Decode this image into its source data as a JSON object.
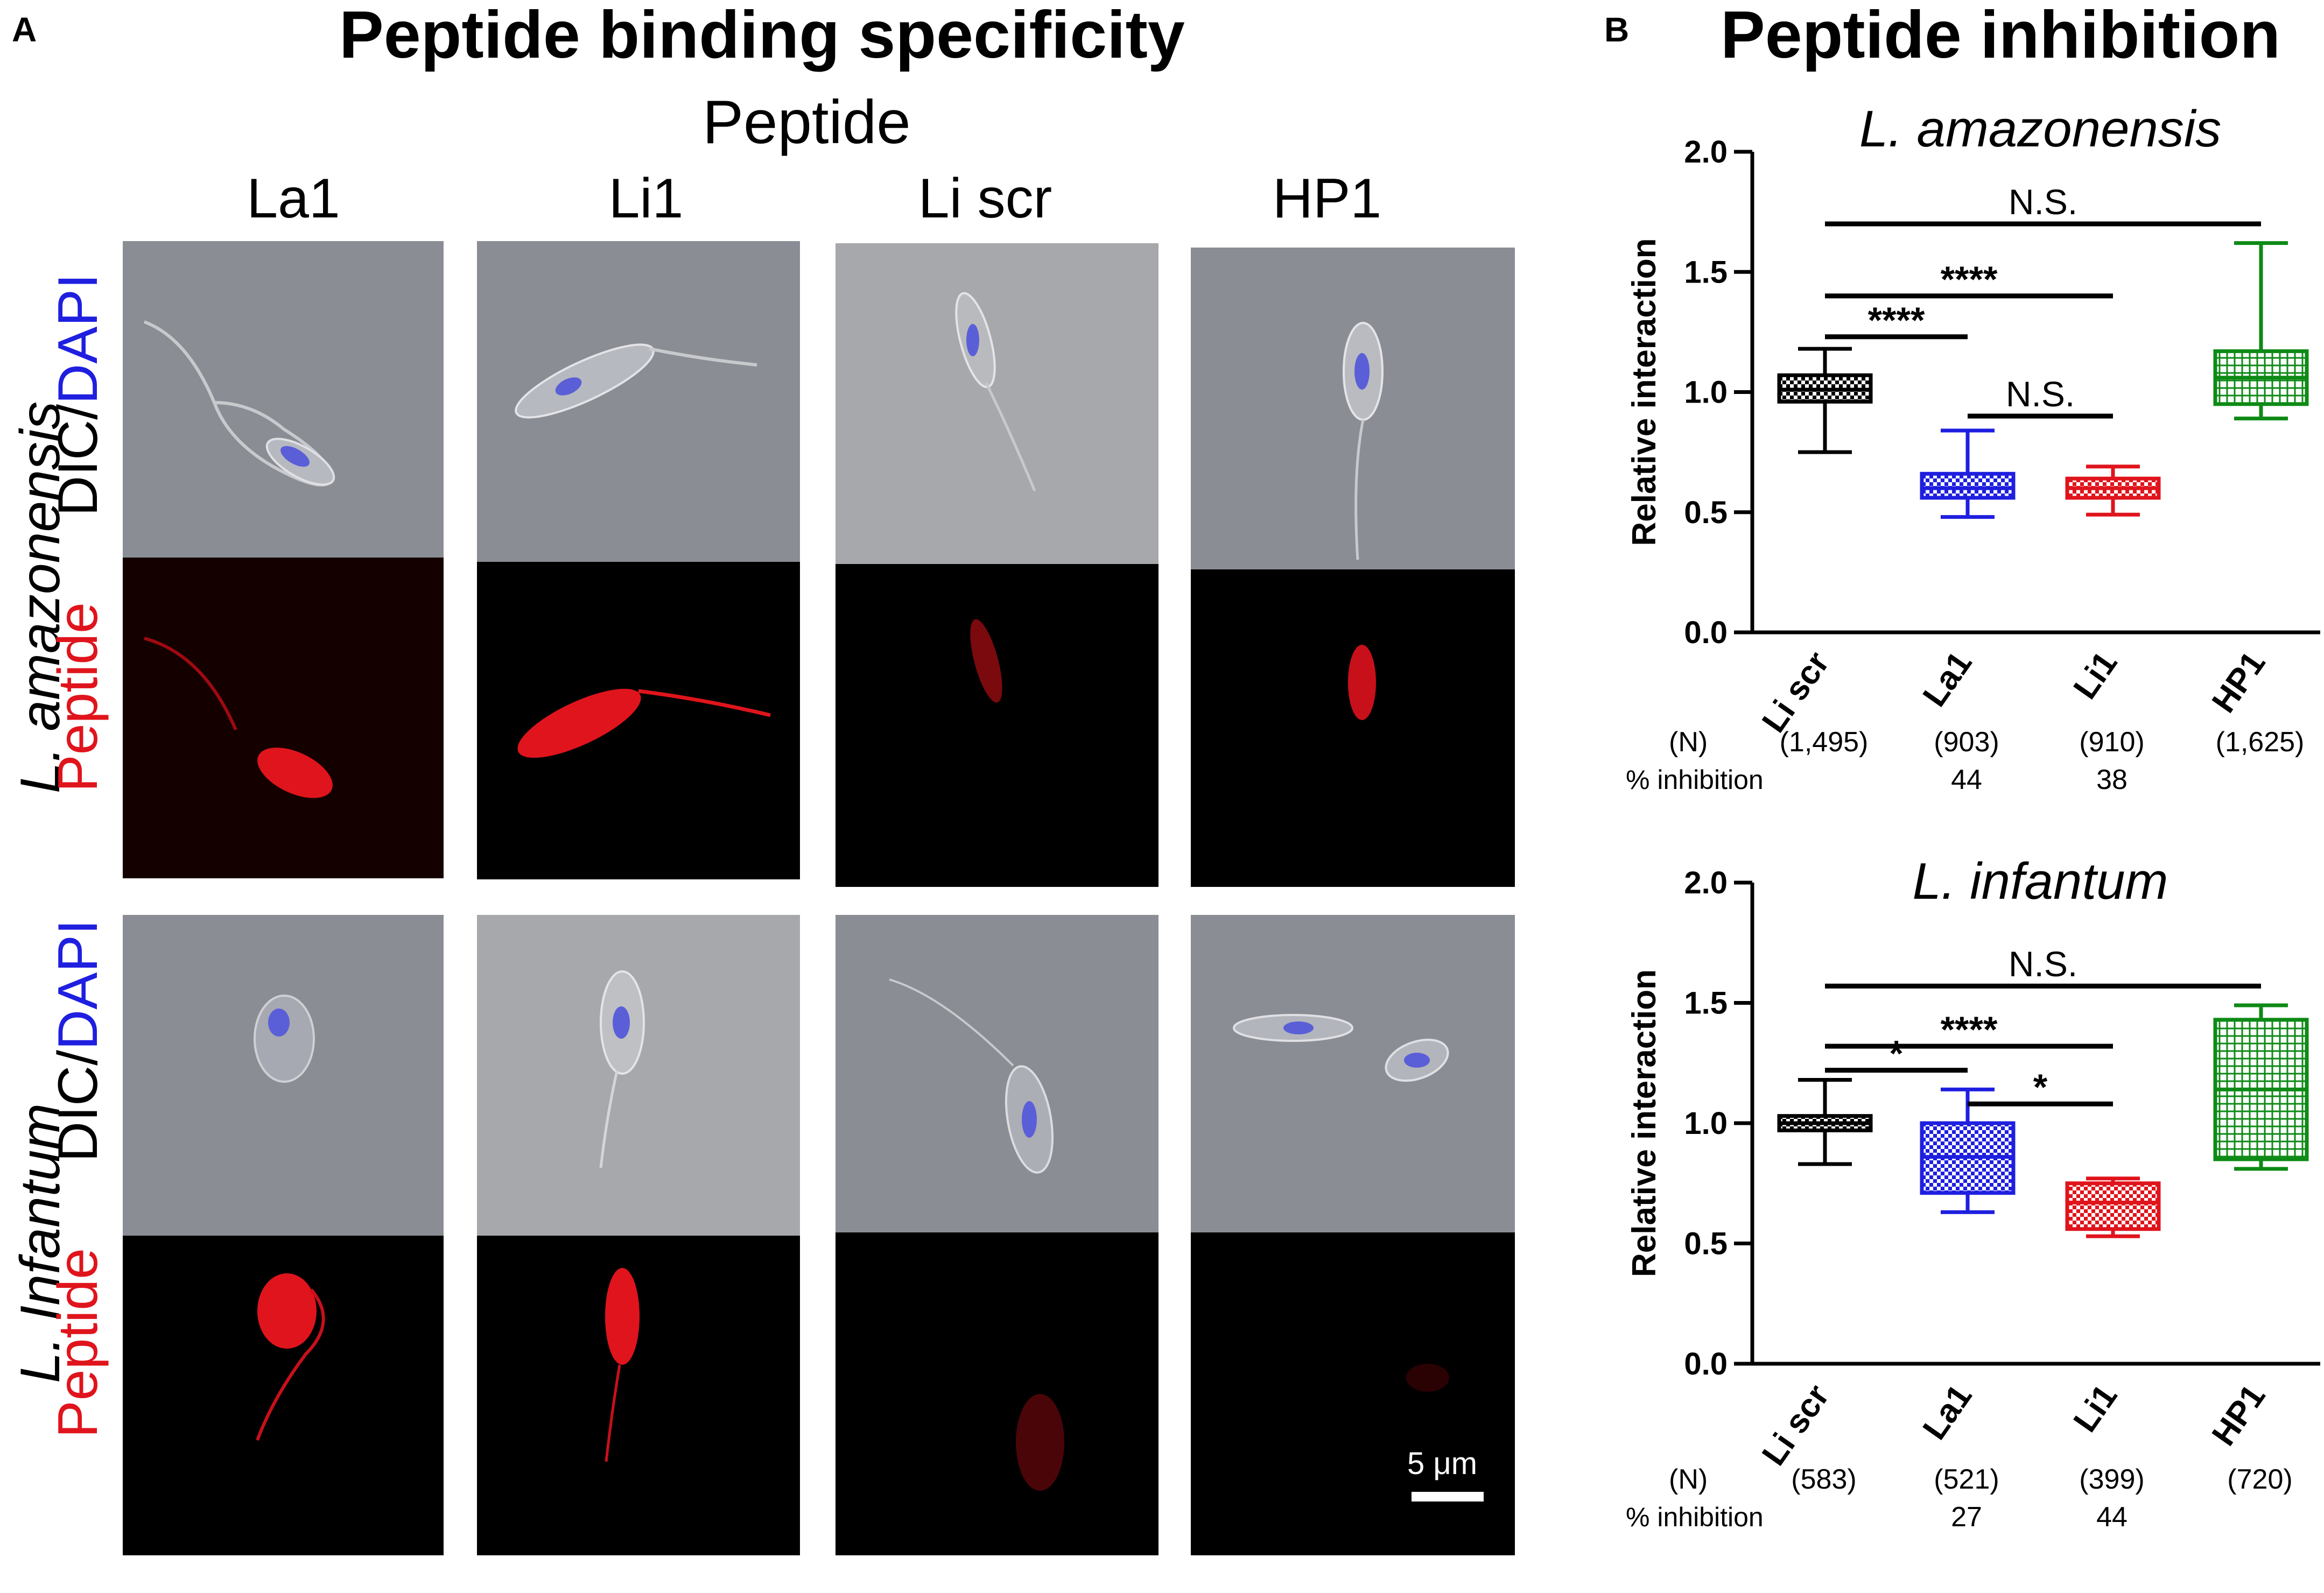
{
  "panel_a": {
    "letter": "A",
    "title": "Peptide binding specificity",
    "subtitle": "Peptide",
    "columns": [
      "La1",
      "Li1",
      "Li scr",
      "HP1"
    ],
    "rows": [
      {
        "species": "L. amazonensis",
        "label_dic": "DIC/",
        "label_dapi": "DAPI",
        "label_peptide": "Peptide"
      },
      {
        "species": "L. Infantum",
        "label_dic": "DIC/",
        "label_dapi": "DAPI",
        "label_peptide": "Peptide"
      }
    ],
    "scale_bar": "5 μm"
  },
  "panel_b": {
    "letter": "B",
    "title": "Peptide inhibition"
  },
  "colors": {
    "dapi_blue": "#1f1fe0",
    "peptide_red": "#e0141c",
    "li_scr": "#000000",
    "la1": "#1f1fe0",
    "li1": "#e0141c",
    "hp1": "#0e8a16"
  },
  "chart_data": [
    {
      "type": "box",
      "title": "L. amazonensis",
      "ylabel": "Relative interaction",
      "ylim": [
        0,
        2.0
      ],
      "yticks": [
        "0.0",
        "0.5",
        "1.0",
        "1.5",
        "2.0"
      ],
      "categories": [
        "Li scr",
        "La1",
        "Li1",
        "HP1"
      ],
      "n_label": "(N)",
      "n": [
        "(1,495)",
        "(903)",
        "(910)",
        "(1,625)"
      ],
      "inhibition_label": "% inhibition",
      "inhibition": [
        "",
        "44",
        "38",
        ""
      ],
      "boxes": [
        {
          "name": "Li scr",
          "min": 0.75,
          "q1": 0.96,
          "median": 1.01,
          "q3": 1.07,
          "max": 1.18,
          "color": "#000000"
        },
        {
          "name": "La1",
          "min": 0.48,
          "q1": 0.56,
          "median": 0.6,
          "q3": 0.66,
          "max": 0.84,
          "color": "#1f1fe0"
        },
        {
          "name": "Li1",
          "min": 0.49,
          "q1": 0.56,
          "median": 0.6,
          "q3": 0.64,
          "max": 0.69,
          "color": "#e0141c"
        },
        {
          "name": "HP1",
          "min": 0.89,
          "q1": 0.95,
          "median": 1.06,
          "q3": 1.17,
          "max": 1.62,
          "color": "#0e8a16"
        }
      ],
      "significance": [
        {
          "from": 0,
          "to": 3,
          "y": 1.7,
          "label": "N.S."
        },
        {
          "from": 0,
          "to": 2,
          "y": 1.4,
          "label": "****"
        },
        {
          "from": 0,
          "to": 1,
          "y": 1.23,
          "label": "****"
        },
        {
          "from": 1,
          "to": 2,
          "y": 0.9,
          "label": "N.S."
        }
      ]
    },
    {
      "type": "box",
      "title": "L. infantum",
      "ylabel": "Relative interaction",
      "ylim": [
        0,
        2.0
      ],
      "yticks": [
        "0.0",
        "0.5",
        "1.0",
        "1.5",
        "2.0"
      ],
      "categories": [
        "Li scr",
        "La1",
        "Li1",
        "HP1"
      ],
      "n_label": "(N)",
      "n": [
        "(583)",
        "(521)",
        "(399)",
        "(720)"
      ],
      "inhibition_label": "% inhibition",
      "inhibition": [
        "",
        "27",
        "44",
        ""
      ],
      "boxes": [
        {
          "name": "Li scr",
          "min": 0.83,
          "q1": 0.97,
          "median": 1.0,
          "q3": 1.03,
          "max": 1.18,
          "color": "#000000"
        },
        {
          "name": "La1",
          "min": 0.63,
          "q1": 0.71,
          "median": 0.86,
          "q3": 1.0,
          "max": 1.14,
          "color": "#1f1fe0"
        },
        {
          "name": "Li1",
          "min": 0.53,
          "q1": 0.56,
          "median": 0.67,
          "q3": 0.75,
          "max": 0.77,
          "color": "#e0141c"
        },
        {
          "name": "HP1",
          "min": 0.81,
          "q1": 0.85,
          "median": 1.14,
          "q3": 1.43,
          "max": 1.49,
          "color": "#0e8a16"
        }
      ],
      "significance": [
        {
          "from": 0,
          "to": 3,
          "y": 1.57,
          "label": "N.S."
        },
        {
          "from": 0,
          "to": 2,
          "y": 1.32,
          "label": "****"
        },
        {
          "from": 0,
          "to": 1,
          "y": 1.22,
          "label": "*"
        },
        {
          "from": 1,
          "to": 2,
          "y": 1.08,
          "label": "*"
        }
      ]
    }
  ]
}
